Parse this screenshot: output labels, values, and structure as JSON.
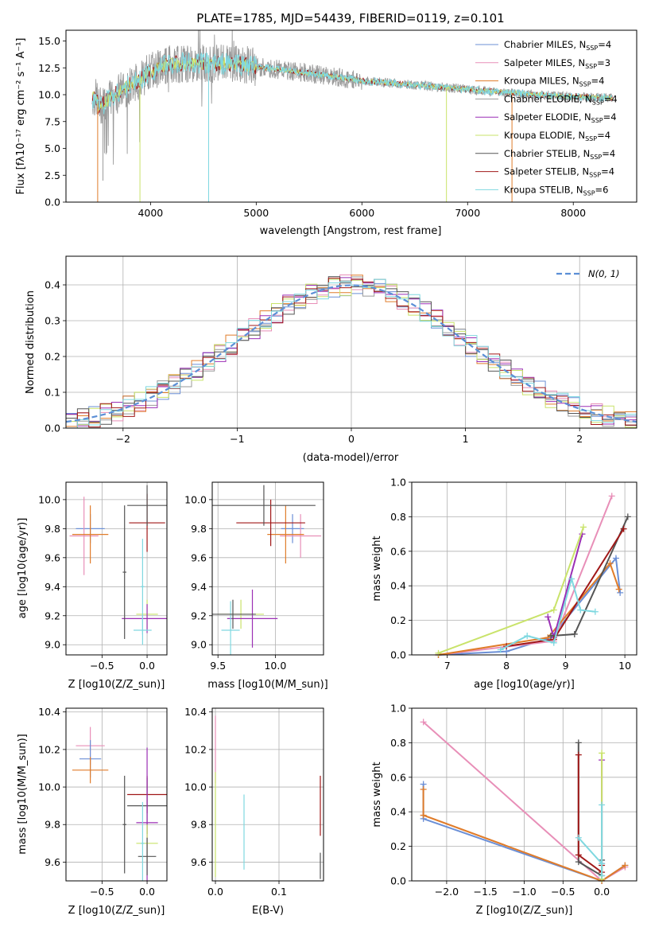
{
  "title": "PLATE=1785, MJD=54439, FIBERID=0119, z=0.101",
  "colors": [
    "#6b8fd6",
    "#e88fb8",
    "#e07c2a",
    "#9a9a9a",
    "#9b2fb5",
    "#c9e36a",
    "#555555",
    "#a01818",
    "#7fd8e0"
  ],
  "series_names": [
    "Chabrier MILES, N_SSP=4",
    "Salpeter MILES, N_SSP=3",
    "Kroupa MILES, N_SSP=4",
    "Chabrier ELODIE, N_SSP=4",
    "Salpeter ELODIE, N_SSP=4",
    "Kroupa ELODIE, N_SSP=4",
    "Chabrier STELIB, N_SSP=4",
    "Salpeter STELIB, N_SSP=4",
    "Kroupa STELIB, N_SSP=6"
  ],
  "chart_data": [
    {
      "type": "line",
      "id": "spectrum",
      "title": "PLATE=1785, MJD=54439, FIBERID=0119, z=0.101",
      "xlabel": "wavelength [Angstrom, rest frame]",
      "ylabel": "Flux [f_λ 10^-17 erg cm^-2 s^-1 A^-1]",
      "xlim": [
        3200,
        8600
      ],
      "ylim": [
        0,
        16
      ],
      "xticks": [
        4000,
        5000,
        6000,
        7000,
        8000
      ],
      "yticks": [
        0.0,
        2.5,
        5.0,
        7.5,
        10.0,
        12.5,
        15.0
      ],
      "legend": {
        "placement": "top-right",
        "entries": [
          {
            "base": "Chabrier MILES, N",
            "sub": "SSP",
            "tail": "=4"
          },
          {
            "base": "Salpeter MILES, N",
            "sub": "SSP",
            "tail": "=3"
          },
          {
            "base": "Kroupa MILES, N",
            "sub": "SSP",
            "tail": "=4"
          },
          {
            "base": "Chabrier ELODIE, N",
            "sub": "SSP",
            "tail": "=4"
          },
          {
            "base": "Salpeter ELODIE, N",
            "sub": "SSP",
            "tail": "=4"
          },
          {
            "base": "Kroupa ELODIE, N",
            "sub": "SSP",
            "tail": "=4"
          },
          {
            "base": "Chabrier STELIB, N",
            "sub": "SSP",
            "tail": "=4"
          },
          {
            "base": "Salpeter STELIB, N",
            "sub": "SSP",
            "tail": "=4"
          },
          {
            "base": "Kroupa STELIB, N",
            "sub": "SSP",
            "tail": "=6"
          }
        ]
      },
      "continuum": [
        [
          3500,
          8.8
        ],
        [
          3700,
          10.3
        ],
        [
          3900,
          11.4
        ],
        [
          4000,
          12.2
        ],
        [
          4200,
          12.9
        ],
        [
          4400,
          12.9
        ],
        [
          4800,
          12.9
        ],
        [
          5000,
          12.6
        ],
        [
          5500,
          12.0
        ],
        [
          6000,
          11.3
        ],
        [
          6500,
          10.9
        ],
        [
          7000,
          10.5
        ],
        [
          7500,
          10.1
        ],
        [
          8000,
          9.8
        ],
        [
          8370,
          9.7
        ]
      ],
      "drops": [
        [
          3500,
          0
        ],
        [
          3550,
          2
        ],
        [
          3900,
          0
        ],
        [
          4550,
          0
        ],
        [
          6800,
          0
        ],
        [
          7420,
          0
        ]
      ]
    },
    {
      "type": "histogram",
      "id": "residuals",
      "xlabel": "(data-model)/error",
      "ylabel": "Normed distribution",
      "xlim": [
        -2.5,
        2.5
      ],
      "ylim": [
        0,
        0.48
      ],
      "xticks": [
        -2,
        -1,
        0,
        1,
        2
      ],
      "yticks": [
        0.0,
        0.1,
        0.2,
        0.3,
        0.4
      ],
      "grid": true,
      "bin_width": 0.1,
      "reference_curve": {
        "name": "N(0,1)",
        "style": "dashed",
        "color": "#5b8fd6"
      },
      "legend": {
        "placement": "top-right"
      }
    },
    {
      "type": "scatter",
      "id": "age-vs-Z",
      "xlabel": "Z [log10(Z/Z_sun)]",
      "ylabel": "age [log10(age/yr)]",
      "xlim": [
        -0.9,
        0.22
      ],
      "ylim": [
        8.93,
        10.12
      ],
      "xticks": [
        -0.5,
        0.0
      ],
      "yticks": [
        9.0,
        9.2,
        9.4,
        9.6,
        9.8,
        10.0
      ],
      "grid": true,
      "errorbars": [
        {
          "series": 0,
          "x": -0.63,
          "xerr": 0.16,
          "y": 9.8,
          "yerr": 0.1
        },
        {
          "series": 1,
          "x": -0.7,
          "xerr": 0.16,
          "y": 9.75,
          "yerr": 0.27
        },
        {
          "series": 2,
          "x": -0.63,
          "xerr": 0.2,
          "y": 9.76,
          "yerr": 0.2
        },
        {
          "series": 7,
          "x": 0.0,
          "xerr": 0.2,
          "y": 9.84,
          "yerr": 0.2
        },
        {
          "series": 6,
          "x": 0.0,
          "xerr": 0.22,
          "y": 9.96,
          "yerr": 0.14
        },
        {
          "series": 5,
          "x": 0.0,
          "xerr": 0.12,
          "y": 9.21,
          "yerr": 0.1
        },
        {
          "series": 4,
          "x": 0.0,
          "xerr": 0.28,
          "y": 9.18,
          "yerr": 0.1
        },
        {
          "series": 8,
          "x": -0.05,
          "xerr": 0.1,
          "y": 9.1,
          "yerr": 0.1
        },
        {
          "series": 6,
          "x": -0.25,
          "xerr": 0.02,
          "y": 9.5,
          "yerr": 0.46
        },
        {
          "series": 8,
          "x": -0.05,
          "xerr": 0.02,
          "y": 9.4,
          "yerr": 0.33
        }
      ]
    },
    {
      "type": "scatter",
      "id": "age-vs-mass",
      "xlabel": "mass [log10(M/M_sun)]",
      "ylabel": "",
      "xlim": [
        9.45,
        10.42
      ],
      "ylim": [
        8.93,
        10.12
      ],
      "xticks": [
        9.5,
        10.0
      ],
      "yticks": [
        9.0,
        9.2,
        9.4,
        9.6,
        9.8,
        10.0
      ],
      "grid": true,
      "errorbars": [
        {
          "series": 0,
          "x": 10.15,
          "xerr": 0.1,
          "y": 9.8,
          "yerr": 0.1
        },
        {
          "series": 1,
          "x": 10.22,
          "xerr": 0.18,
          "y": 9.75,
          "yerr": 0.15
        },
        {
          "series": 2,
          "x": 10.09,
          "xerr": 0.16,
          "y": 9.76,
          "yerr": 0.2
        },
        {
          "series": 7,
          "x": 9.96,
          "xerr": 0.3,
          "y": 9.84,
          "yerr": 0.16
        },
        {
          "series": 6,
          "x": 9.9,
          "xerr": 0.45,
          "y": 9.96,
          "yerr": 0.14
        },
        {
          "series": 5,
          "x": 9.7,
          "xerr": 0.2,
          "y": 9.21,
          "yerr": 0.1
        },
        {
          "series": 4,
          "x": 9.8,
          "xerr": 0.22,
          "y": 9.18,
          "yerr": 0.2
        },
        {
          "series": 8,
          "x": 9.61,
          "xerr": 0.08,
          "y": 9.1,
          "yerr": 0.2
        },
        {
          "series": 6,
          "x": 9.63,
          "xerr": 0.2,
          "y": 9.21,
          "yerr": 0.1
        }
      ]
    },
    {
      "type": "line",
      "id": "weight-vs-age",
      "xlabel": "age [log10(age/yr)]",
      "ylabel": "mass weight",
      "xlim": [
        6.4,
        10.2
      ],
      "ylim": [
        0.0,
        1.0
      ],
      "xticks": [
        7,
        8,
        9,
        10
      ],
      "yticks": [
        0.0,
        0.2,
        0.4,
        0.6,
        0.8,
        1.0
      ],
      "grid": true,
      "series": [
        {
          "series": 0,
          "x": [
            6.85,
            8.0,
            8.75,
            9.85,
            9.92
          ],
          "y": [
            0.0,
            0.02,
            0.1,
            0.56,
            0.36
          ]
        },
        {
          "series": 1,
          "x": [
            6.85,
            8.8,
            9.78
          ],
          "y": [
            0.0,
            0.08,
            0.92
          ]
        },
        {
          "series": 2,
          "x": [
            6.85,
            8.7,
            9.75,
            9.9
          ],
          "y": [
            0.0,
            0.1,
            0.53,
            0.38
          ]
        },
        {
          "series": 4,
          "x": [
            8.7,
            8.8,
            9.28
          ],
          "y": [
            0.22,
            0.1,
            0.7
          ]
        },
        {
          "series": 5,
          "x": [
            6.85,
            8.8,
            9.3
          ],
          "y": [
            0.01,
            0.26,
            0.74
          ]
        },
        {
          "series": 6,
          "x": [
            8.75,
            9.15,
            10.05
          ],
          "y": [
            0.11,
            0.12,
            0.8
          ]
        },
        {
          "series": 7,
          "x": [
            8.0,
            8.8,
            9.98
          ],
          "y": [
            0.05,
            0.09,
            0.73
          ]
        },
        {
          "series": 8,
          "x": [
            7.9,
            8.35,
            8.8,
            9.1,
            9.25,
            9.5
          ],
          "y": [
            0.03,
            0.11,
            0.07,
            0.44,
            0.26,
            0.25
          ]
        }
      ]
    },
    {
      "type": "scatter",
      "id": "mass-vs-Z",
      "xlabel": "Z [log10(Z/Z_sun)]",
      "ylabel": "mass [log10(M/M_sun)]",
      "xlim": [
        -0.9,
        0.22
      ],
      "ylim": [
        9.5,
        10.42
      ],
      "xticks": [
        -0.5,
        0.0
      ],
      "yticks": [
        9.6,
        9.8,
        10.0,
        10.2,
        10.4
      ],
      "grid": true,
      "errorbars": [
        {
          "series": 1,
          "x": -0.63,
          "xerr": 0.16,
          "y": 10.22,
          "yerr": 0.1
        },
        {
          "series": 0,
          "x": -0.63,
          "xerr": 0.12,
          "y": 10.15,
          "yerr": 0.1
        },
        {
          "series": 2,
          "x": -0.63,
          "xerr": 0.2,
          "y": 10.09,
          "yerr": 0.07
        },
        {
          "series": 7,
          "x": 0.0,
          "xerr": 0.22,
          "y": 9.96,
          "yerr": 0.1
        },
        {
          "series": 6,
          "x": 0.0,
          "xerr": 0.22,
          "y": 9.9,
          "yerr": 0.15
        },
        {
          "series": 4,
          "x": 0.0,
          "xerr": 0.12,
          "y": 9.81,
          "yerr": 0.4
        },
        {
          "series": 5,
          "x": 0.0,
          "xerr": 0.12,
          "y": 9.7,
          "yerr": 0.1
        },
        {
          "series": 6,
          "x": 0.0,
          "xerr": 0.1,
          "y": 9.63,
          "yerr": 0.1
        },
        {
          "series": 6,
          "x": -0.25,
          "xerr": 0.02,
          "y": 9.8,
          "yerr": 0.26
        },
        {
          "series": 8,
          "x": -0.05,
          "xerr": 0.02,
          "y": 9.7,
          "yerr": 0.22
        }
      ]
    },
    {
      "type": "scatter",
      "id": "mass-vs-EBV",
      "xlabel": "E(B-V)",
      "ylabel": "",
      "xlim": [
        -0.005,
        0.17
      ],
      "ylim": [
        9.5,
        10.42
      ],
      "xticks": [
        0.0,
        0.1
      ],
      "yticks": [
        9.6,
        9.8,
        10.0,
        10.2,
        10.4
      ],
      "grid": true,
      "errorbars": [
        {
          "series": 1,
          "x": 0.0,
          "xerr": 0.0,
          "y": 10.2,
          "yerr": 0.18
        },
        {
          "series": 5,
          "x": 0.0,
          "xerr": 0.0,
          "y": 9.8,
          "yerr": 0.28
        },
        {
          "series": 8,
          "x": 0.045,
          "xerr": 0.0,
          "y": 9.76,
          "yerr": 0.2
        },
        {
          "series": 7,
          "x": 0.165,
          "xerr": 0.0,
          "y": 9.9,
          "yerr": 0.16
        },
        {
          "series": 6,
          "x": 0.165,
          "xerr": 0.0,
          "y": 9.58,
          "yerr": 0.07
        }
      ]
    },
    {
      "type": "line",
      "id": "weight-vs-Z",
      "xlabel": "Z [log10(Z/Z_sun)]",
      "ylabel": "mass weight",
      "xlim": [
        -2.45,
        0.45
      ],
      "ylim": [
        0.0,
        1.0
      ],
      "xticks": [
        -2.0,
        -1.5,
        -1.0,
        -0.5,
        0.0
      ],
      "yticks": [
        0.0,
        0.2,
        0.4,
        0.6,
        0.8,
        1.0
      ],
      "grid": true,
      "series": [
        {
          "series": 1,
          "x": [
            -2.3,
            0.0,
            0.3
          ],
          "y": [
            0.92,
            0.0,
            0.08
          ]
        },
        {
          "series": 0,
          "x": [
            -2.3,
            -2.3,
            0.0,
            0.3
          ],
          "y": [
            0.56,
            0.36,
            0.0,
            0.09
          ]
        },
        {
          "series": 2,
          "x": [
            -2.3,
            -2.3,
            0.0,
            0.3
          ],
          "y": [
            0.53,
            0.38,
            0.0,
            0.09
          ]
        },
        {
          "series": 6,
          "x": [
            -0.3,
            -0.3,
            0.0,
            0.0
          ],
          "y": [
            0.8,
            0.11,
            0.03,
            0.12
          ]
        },
        {
          "series": 7,
          "x": [
            -0.3,
            -0.3,
            0.0,
            0.0
          ],
          "y": [
            0.73,
            0.15,
            0.05,
            0.09
          ]
        },
        {
          "series": 4,
          "x": [
            0.0,
            0.0
          ],
          "y": [
            0.7,
            0.1
          ]
        },
        {
          "series": 5,
          "x": [
            0.0,
            0.0
          ],
          "y": [
            0.74,
            0.01
          ]
        },
        {
          "series": 8,
          "x": [
            -0.3,
            0.0,
            0.0,
            0.0
          ],
          "y": [
            0.25,
            0.1,
            0.44,
            0.03
          ]
        }
      ]
    }
  ]
}
